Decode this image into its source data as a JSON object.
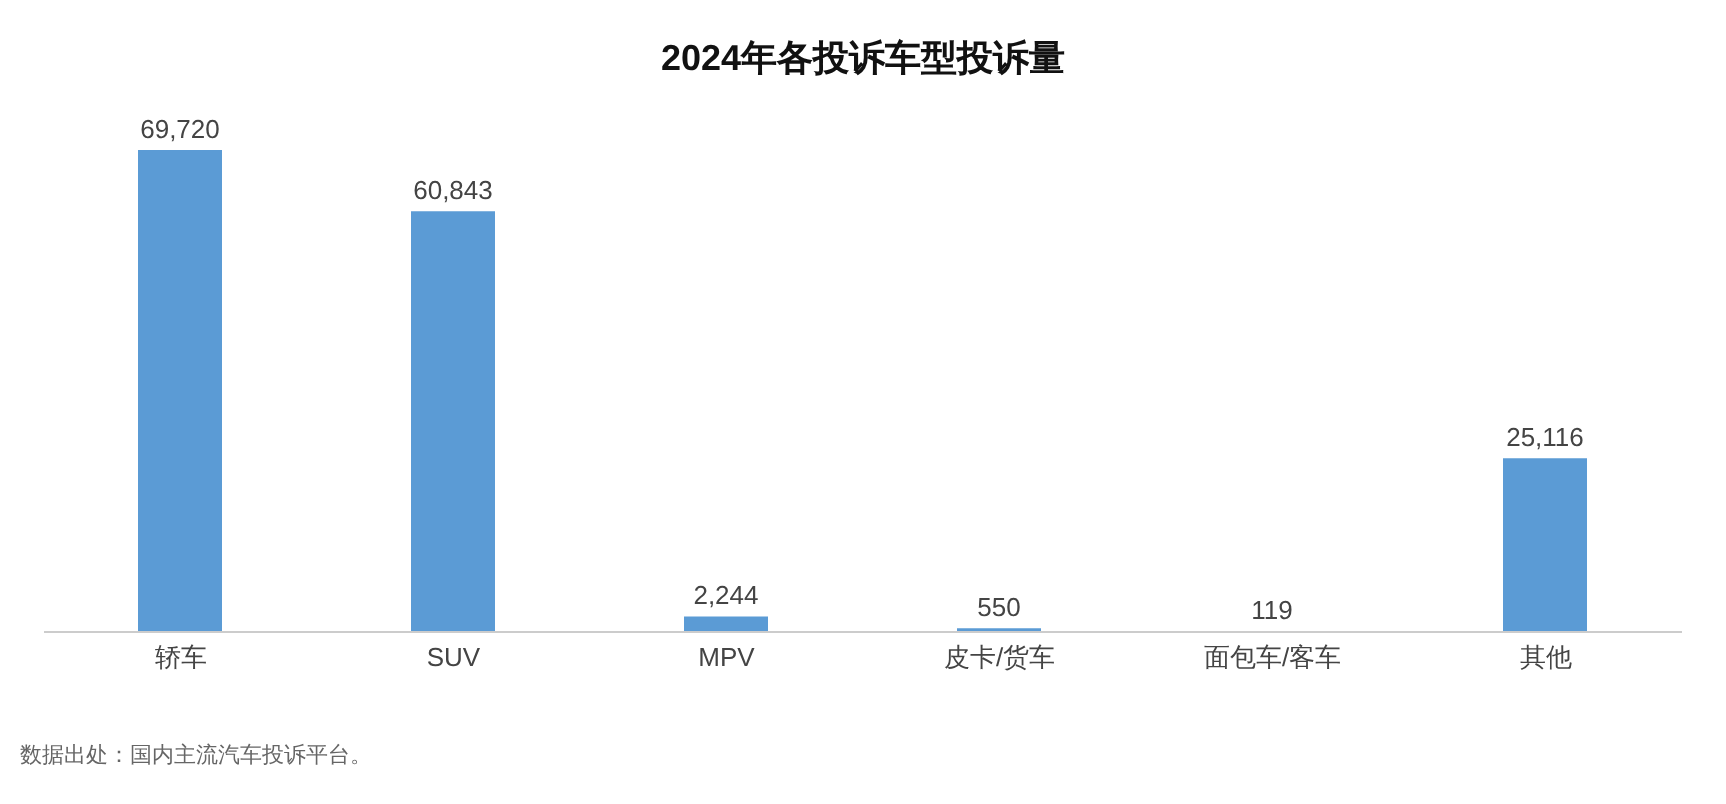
{
  "chart_data": {
    "type": "bar",
    "title": "2024年各投诉车型投诉量",
    "categories": [
      "轿车",
      "SUV",
      "MPV",
      "皮卡/货车",
      "面包车/客车",
      "其他"
    ],
    "values": [
      69720,
      60843,
      2244,
      550,
      119,
      25116
    ],
    "value_labels": [
      "69,720",
      "60,843",
      "2,244",
      "550",
      "119",
      "25,116"
    ],
    "color": "#5b9bd5",
    "tick_labels": "x",
    "annotations": [
      "数据出处：国内主流汽车投诉平台。"
    ]
  }
}
